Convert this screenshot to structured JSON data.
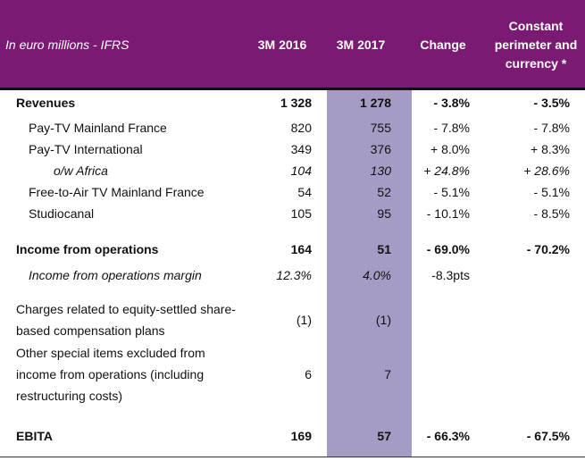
{
  "header": {
    "unit_label": "In euro millions - IFRS",
    "col_2016": "3M 2016",
    "col_2017": "3M 2017",
    "col_change": "Change",
    "col_constant_l1": "Constant",
    "col_constant_l2": "perimeter and",
    "col_constant_l3": "currency *"
  },
  "rows": {
    "revenues": {
      "label": "Revenues",
      "v2016": "1 328",
      "v2017": "1 278",
      "change": "- 3.8%",
      "constant": "- 3.5%"
    },
    "paytv_france": {
      "label": "Pay-TV Mainland France",
      "v2016": "820",
      "v2017": "755",
      "change": "- 7.8%",
      "constant": "- 7.8%"
    },
    "paytv_intl": {
      "label": "Pay-TV International",
      "v2016": "349",
      "v2017": "376",
      "change": "+ 8.0%",
      "constant": "+ 8.3%"
    },
    "africa": {
      "label": "o/w Africa",
      "v2016": "104",
      "v2017": "130",
      "change": "+ 24.8%",
      "constant": "+ 28.6%"
    },
    "fta_france": {
      "label": "Free-to-Air TV Mainland France",
      "v2016": "54",
      "v2017": "52",
      "change": "- 5.1%",
      "constant": "- 5.1%"
    },
    "studiocanal": {
      "label": "Studiocanal",
      "v2016": "105",
      "v2017": "95",
      "change": "- 10.1%",
      "constant": "- 8.5%"
    },
    "income_ops": {
      "label": "Income from operations",
      "v2016": "164",
      "v2017": "51",
      "change": "- 69.0%",
      "constant": "- 70.2%"
    },
    "income_margin": {
      "label": "Income from operations margin",
      "v2016": "12.3%",
      "v2017": "4.0%",
      "change": "-8.3pts"
    },
    "charges": {
      "label_l1": "Charges related to equity-settled share-",
      "label_l2": "based compensation plans",
      "v2016": "(1)",
      "v2017": "(1)"
    },
    "special": {
      "label_l1": "Other special items excluded from",
      "label_l2": "income from operations (including",
      "label_l3": "restructuring costs)",
      "v2016": "6",
      "v2017": "7"
    },
    "ebita": {
      "label": "EBITA",
      "v2016": "169",
      "v2017": "57",
      "change": "- 66.3%",
      "constant": "- 67.5%"
    }
  }
}
